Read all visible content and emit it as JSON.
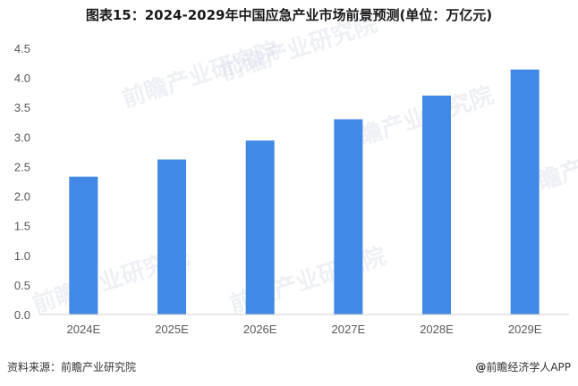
{
  "title": "图表15：2024-2029年中国应急产业市场前景预测(单位：万亿元)",
  "source": "资料来源：前瞻产业研究院",
  "logo": {
    "icon": "at-icon",
    "text": "前瞻经济学人APP"
  },
  "watermark": "前瞻产业研究院",
  "chart_data": {
    "type": "bar",
    "title": "图表15：2024-2029年中国应急产业市场前景预测(单位：万亿元)",
    "categories": [
      "2024E",
      "2025E",
      "2026E",
      "2027E",
      "2028E",
      "2029E"
    ],
    "values": [
      2.33,
      2.62,
      2.94,
      3.3,
      3.7,
      4.14
    ],
    "xlabel": "",
    "ylabel": "",
    "ylim": [
      0,
      4.5
    ],
    "yticks": [
      "0.0",
      "0.5",
      "1.0",
      "1.5",
      "2.0",
      "2.5",
      "3.0",
      "3.5",
      "4.0",
      "4.5"
    ],
    "bar_color": "#4089e4",
    "grid": false,
    "legend": "none"
  }
}
